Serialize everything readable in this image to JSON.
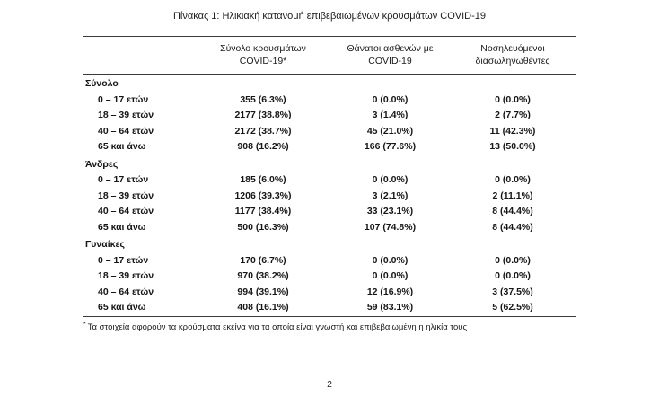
{
  "document": {
    "title": "Πίνακας 1: Ηλικιακή κατανομή επιβεβαιωμένων κρουσμάτων COVID-19",
    "footnote_marker": "*",
    "footnote": "Τα στοιχεία αφορούν τα κρούσματα εκείνα για τα οποία είναι γνωστή και επιβεβαιωμένη η ηλικία τους",
    "page_number": "2"
  },
  "table": {
    "headers": [
      {
        "line1": "Σύνολο κρουσμάτων",
        "line2": "COVID-19*"
      },
      {
        "line1": "Θάνατοι ασθενών με",
        "line2": "COVID-19"
      },
      {
        "line1": "Νοσηλευόμενοι",
        "line2": "διασωληνωθέντες"
      }
    ],
    "sections": [
      {
        "label": "Σύνολο",
        "rows": [
          {
            "label": "0 – 17 ετών",
            "values": [
              "355 (6.3%)",
              "0 (0.0%)",
              "0 (0.0%)"
            ]
          },
          {
            "label": "18 – 39 ετών",
            "values": [
              "2177 (38.8%)",
              "3 (1.4%)",
              "2 (7.7%)"
            ]
          },
          {
            "label": "40 – 64 ετών",
            "values": [
              "2172 (38.7%)",
              "45 (21.0%)",
              "11 (42.3%)"
            ]
          },
          {
            "label": "65 και άνω",
            "values": [
              "908 (16.2%)",
              "166 (77.6%)",
              "13 (50.0%)"
            ]
          }
        ]
      },
      {
        "label": "Άνδρες",
        "rows": [
          {
            "label": "0 – 17 ετών",
            "values": [
              "185 (6.0%)",
              "0 (0.0%)",
              "0 (0.0%)"
            ]
          },
          {
            "label": "18 – 39 ετών",
            "values": [
              "1206 (39.3%)",
              "3 (2.1%)",
              "2 (11.1%)"
            ]
          },
          {
            "label": "40 – 64 ετών",
            "values": [
              "1177 (38.4%)",
              "33 (23.1%)",
              "8 (44.4%)"
            ]
          },
          {
            "label": "65 και άνω",
            "values": [
              "500 (16.3%)",
              "107 (74.8%)",
              "8 (44.4%)"
            ]
          }
        ]
      },
      {
        "label": "Γυναίκες",
        "rows": [
          {
            "label": "0 – 17 ετών",
            "values": [
              "170 (6.7%)",
              "0 (0.0%)",
              "0 (0.0%)"
            ]
          },
          {
            "label": "18 – 39 ετών",
            "values": [
              "970 (38.2%)",
              "0 (0.0%)",
              "0 (0.0%)"
            ]
          },
          {
            "label": "40 – 64 ετών",
            "values": [
              "994 (39.1%)",
              "12 (16.9%)",
              "3 (37.5%)"
            ]
          },
          {
            "label": "65 και άνω",
            "values": [
              "408 (16.1%)",
              "59 (83.1%)",
              "5 (62.5%)"
            ]
          }
        ]
      }
    ]
  }
}
